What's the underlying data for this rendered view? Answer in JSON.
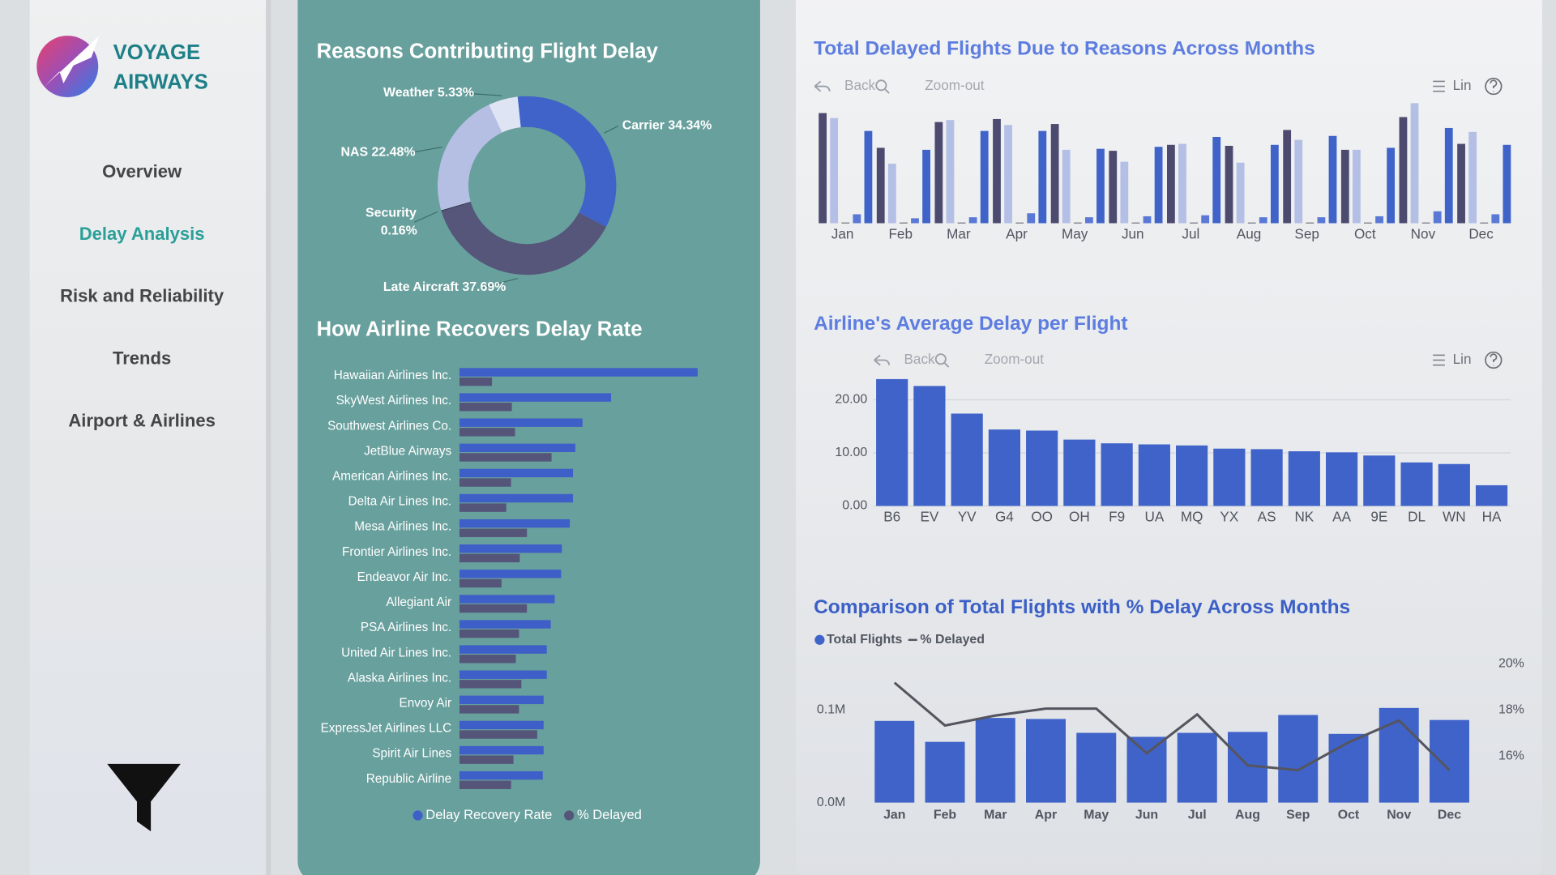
{
  "sidebar": {
    "logo": [
      "VOYAGE",
      "AIRWAYS"
    ],
    "nav": [
      "Overview",
      "Delay Analysis",
      "Risk and Reliability",
      "Trends",
      "Airport & Airlines"
    ],
    "active": 1
  },
  "chart_data": [
    {
      "type": "donut",
      "title": "Reasons Contributing Flight Delay",
      "categories": [
        "Carrier",
        "Late Aircraft",
        "Security",
        "NAS",
        "Weather"
      ],
      "values": [
        34.34,
        37.69,
        0.16,
        22.48,
        5.33
      ],
      "value_labels": [
        "34.34%",
        "37.69%",
        "0.16%",
        "22.48%",
        "5.33%"
      ],
      "colors": [
        "#3f63c9",
        "#56557a",
        "#2a2a3a",
        "#b5bfe3",
        "#dfe4f4"
      ]
    },
    {
      "type": "grouped_barh",
      "title": "How Airline Recovers Delay Rate",
      "categories": [
        "Hawaiian Airlines Inc.",
        "SkyWest Airlines Inc.",
        "Southwest Airlines Co.",
        "JetBlue Airways",
        "American Airlines Inc.",
        "Delta Air Lines Inc.",
        "Mesa Airlines Inc.",
        "Frontier Airlines Inc.",
        "Endeavor Air Inc.",
        "Allegiant Air",
        "PSA Airlines Inc.",
        "United Air Lines Inc.",
        "Alaska Airlines Inc.",
        "Envoy Air",
        "ExpressJet Airlines LLC",
        "Spirit Air Lines",
        "Republic Airline"
      ],
      "series": [
        {
          "name": "Delay Recovery Rate",
          "color": "#3f5fc8",
          "values": [
            30,
            19.1,
            15.5,
            14.6,
            14.3,
            14.3,
            13.9,
            12.9,
            12.8,
            12,
            11.5,
            11,
            11,
            10.6,
            10.6,
            10.6,
            10.5
          ]
        },
        {
          "name": "% Delayed",
          "color": "#55557a",
          "values": [
            4.1,
            6.6,
            7,
            11.6,
            6.5,
            5.9,
            8.5,
            7.6,
            5.3,
            8.5,
            7.5,
            7.1,
            7.8,
            7.5,
            9.8,
            6.8,
            6.5
          ]
        }
      ]
    },
    {
      "type": "grouped_bar",
      "title": "Total Delayed Flights Due to Reasons Across Months",
      "toolbar": [
        "Back",
        "Zoom-out",
        "Lin"
      ],
      "categories": [
        "Jan",
        "Feb",
        "Mar",
        "Apr",
        "May",
        "Jun",
        "Jul",
        "Aug",
        "Sep",
        "Oct",
        "Nov",
        "Dec"
      ],
      "series": [
        {
          "color": "#4c4b6f",
          "values": [
            11100,
            7600,
            10200,
            10500,
            10000,
            7300,
            7900,
            7800,
            9400,
            7400,
            10700,
            8000
          ]
        },
        {
          "color": "#b4bfe6",
          "values": [
            10600,
            6000,
            10400,
            9900,
            7400,
            6200,
            8000,
            6100,
            8400,
            7400,
            12100,
            9200
          ]
        },
        {
          "color": "#222233",
          "values": [
            60,
            60,
            60,
            60,
            60,
            60,
            60,
            60,
            60,
            60,
            60,
            60
          ]
        },
        {
          "color": "#5a78d6",
          "values": [
            900,
            500,
            600,
            1000,
            600,
            700,
            800,
            600,
            600,
            700,
            1200,
            900
          ]
        },
        {
          "color": "#3f63c9",
          "values": [
            9300,
            7400,
            9300,
            9300,
            7500,
            7700,
            8700,
            7900,
            8800,
            7600,
            9600,
            7900
          ]
        }
      ]
    },
    {
      "type": "bar",
      "title": "Airline's Average Delay per Flight",
      "toolbar": [
        "Back",
        "Zoom-out",
        "Lin"
      ],
      "categories": [
        "B6",
        "EV",
        "YV",
        "G4",
        "OO",
        "OH",
        "F9",
        "UA",
        "MQ",
        "YX",
        "AS",
        "NK",
        "AA",
        "9E",
        "DL",
        "WN",
        "HA"
      ],
      "values": [
        23.9,
        22.6,
        17.4,
        14.4,
        14.2,
        12.5,
        11.8,
        11.6,
        11.4,
        10.8,
        10.7,
        10.3,
        10.1,
        9.5,
        8.2,
        7.9,
        3.9
      ],
      "color": "#3f63c9",
      "ylim": [
        0,
        25
      ],
      "yticks": [
        {
          "value": 0,
          "label": "0.00"
        },
        {
          "value": 10,
          "label": "10.00"
        },
        {
          "value": 20,
          "label": "20.00"
        }
      ],
      "grid": true
    },
    {
      "type": "combo",
      "title": "Comparison of Total Flights with % Delay Across Months",
      "categories": [
        "Jan",
        "Feb",
        "Mar",
        "Apr",
        "May",
        "Jun",
        "Jul",
        "Aug",
        "Sep",
        "Oct",
        "Nov",
        "Dec"
      ],
      "series": [
        {
          "name": "Total Flights",
          "color": "#3f63c9",
          "values": [
            88200,
            65600,
            91400,
            90300,
            75300,
            71000,
            75300,
            76300,
            94600,
            74200,
            102200,
            89200
          ]
        },
        {
          "name": "% Delayed",
          "color": "#55555f",
          "axis": "y2",
          "values": [
            19.18,
            17.33,
            17.76,
            18.06,
            18.06,
            16.13,
            17.81,
            15.61,
            15.4,
            16.6,
            17.55,
            15.4
          ]
        }
      ],
      "ylim": [
        0,
        150000
      ],
      "yticks": [
        {
          "value": 0,
          "label": "0.0M"
        },
        {
          "value": 100000,
          "label": "0.1M"
        }
      ],
      "y2lim": [
        14,
        20
      ],
      "y2ticks": [
        {
          "value": 16,
          "label": "16%"
        },
        {
          "value": 18,
          "label": "18%"
        },
        {
          "value": 20,
          "label": "20%"
        }
      ]
    }
  ]
}
